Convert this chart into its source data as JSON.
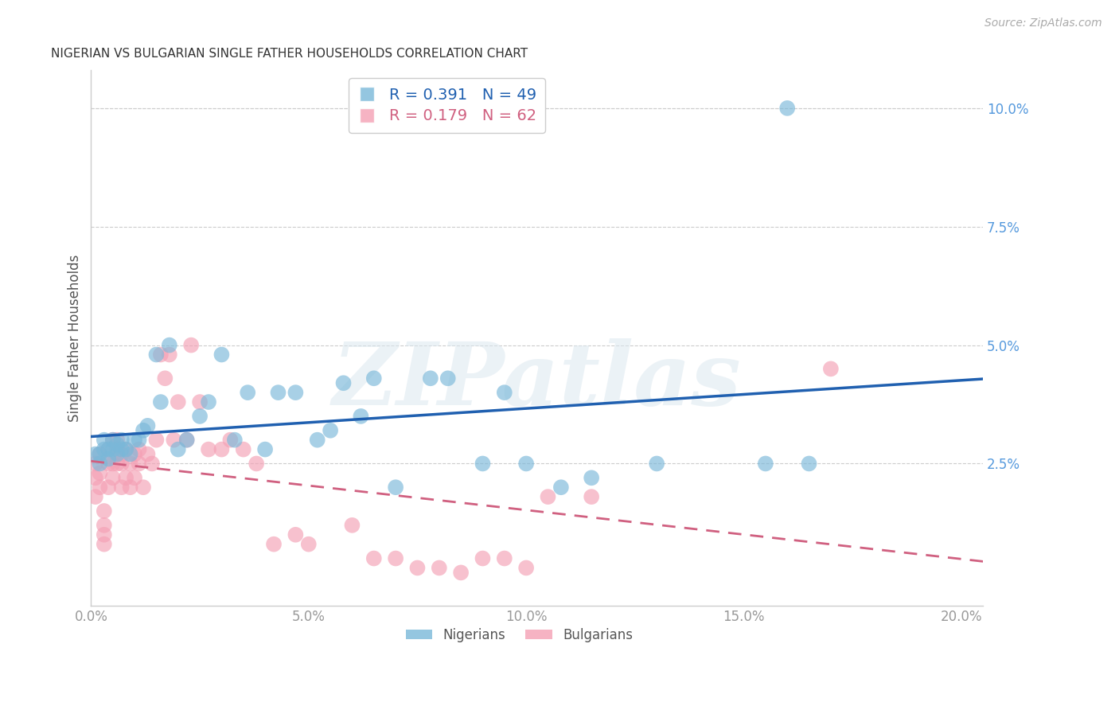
{
  "title": "NIGERIAN VS BULGARIAN SINGLE FATHER HOUSEHOLDS CORRELATION CHART",
  "source": "Source: ZipAtlas.com",
  "ylabel": "Single Father Households",
  "xlim": [
    0.0,
    0.205
  ],
  "ylim": [
    -0.005,
    0.108
  ],
  "xticks": [
    0.0,
    0.05,
    0.1,
    0.15,
    0.2
  ],
  "xtick_labels": [
    "0.0%",
    "5.0%",
    "10.0%",
    "15.0%",
    "20.0%"
  ],
  "yticks_right": [
    0.025,
    0.05,
    0.075,
    0.1
  ],
  "ytick_labels_right": [
    "2.5%",
    "5.0%",
    "7.5%",
    "10.0%"
  ],
  "nigerian_color": "#7ab8d9",
  "bulgarian_color": "#f4a0b5",
  "nigerian_line_color": "#2060b0",
  "bulgarian_line_color": "#d06080",
  "nigerian_R": 0.391,
  "nigerian_N": 49,
  "bulgarian_R": 0.179,
  "bulgarian_N": 62,
  "legend_label_nigerian": "Nigerians",
  "legend_label_bulgarian": "Bulgarians",
  "watermark": "ZIPatlas",
  "background_color": "#ffffff",
  "grid_color": "#cccccc",
  "nigerian_x": [
    0.001,
    0.002,
    0.002,
    0.003,
    0.003,
    0.004,
    0.004,
    0.005,
    0.005,
    0.006,
    0.006,
    0.007,
    0.007,
    0.008,
    0.009,
    0.01,
    0.011,
    0.012,
    0.013,
    0.015,
    0.016,
    0.018,
    0.02,
    0.022,
    0.025,
    0.027,
    0.03,
    0.033,
    0.036,
    0.04,
    0.043,
    0.047,
    0.052,
    0.055,
    0.058,
    0.062,
    0.065,
    0.07,
    0.078,
    0.082,
    0.09,
    0.095,
    0.1,
    0.108,
    0.115,
    0.13,
    0.155,
    0.165,
    0.16
  ],
  "nigerian_y": [
    0.027,
    0.025,
    0.027,
    0.03,
    0.028,
    0.028,
    0.026,
    0.028,
    0.03,
    0.027,
    0.029,
    0.028,
    0.03,
    0.028,
    0.027,
    0.03,
    0.03,
    0.032,
    0.033,
    0.048,
    0.038,
    0.05,
    0.028,
    0.03,
    0.035,
    0.038,
    0.048,
    0.03,
    0.04,
    0.028,
    0.04,
    0.04,
    0.03,
    0.032,
    0.042,
    0.035,
    0.043,
    0.02,
    0.043,
    0.043,
    0.025,
    0.04,
    0.025,
    0.02,
    0.022,
    0.025,
    0.025,
    0.025,
    0.1
  ],
  "bulgarian_x": [
    0.001,
    0.001,
    0.001,
    0.002,
    0.002,
    0.002,
    0.003,
    0.003,
    0.003,
    0.003,
    0.004,
    0.004,
    0.004,
    0.005,
    0.005,
    0.005,
    0.006,
    0.006,
    0.006,
    0.007,
    0.007,
    0.007,
    0.008,
    0.008,
    0.009,
    0.009,
    0.01,
    0.01,
    0.011,
    0.011,
    0.012,
    0.013,
    0.014,
    0.015,
    0.016,
    0.017,
    0.018,
    0.019,
    0.02,
    0.022,
    0.023,
    0.025,
    0.027,
    0.03,
    0.032,
    0.035,
    0.038,
    0.042,
    0.047,
    0.05,
    0.06,
    0.065,
    0.07,
    0.075,
    0.08,
    0.085,
    0.09,
    0.095,
    0.1,
    0.105,
    0.115,
    0.17
  ],
  "bulgarian_y": [
    0.025,
    0.022,
    0.018,
    0.027,
    0.023,
    0.02,
    0.01,
    0.012,
    0.015,
    0.008,
    0.025,
    0.028,
    0.02,
    0.03,
    0.025,
    0.022,
    0.028,
    0.03,
    0.025,
    0.027,
    0.025,
    0.02,
    0.028,
    0.022,
    0.025,
    0.02,
    0.027,
    0.022,
    0.028,
    0.025,
    0.02,
    0.027,
    0.025,
    0.03,
    0.048,
    0.043,
    0.048,
    0.03,
    0.038,
    0.03,
    0.05,
    0.038,
    0.028,
    0.028,
    0.03,
    0.028,
    0.025,
    0.008,
    0.01,
    0.008,
    0.012,
    0.005,
    0.005,
    0.003,
    0.003,
    0.002,
    0.005,
    0.005,
    0.003,
    0.018,
    0.018,
    0.045
  ]
}
